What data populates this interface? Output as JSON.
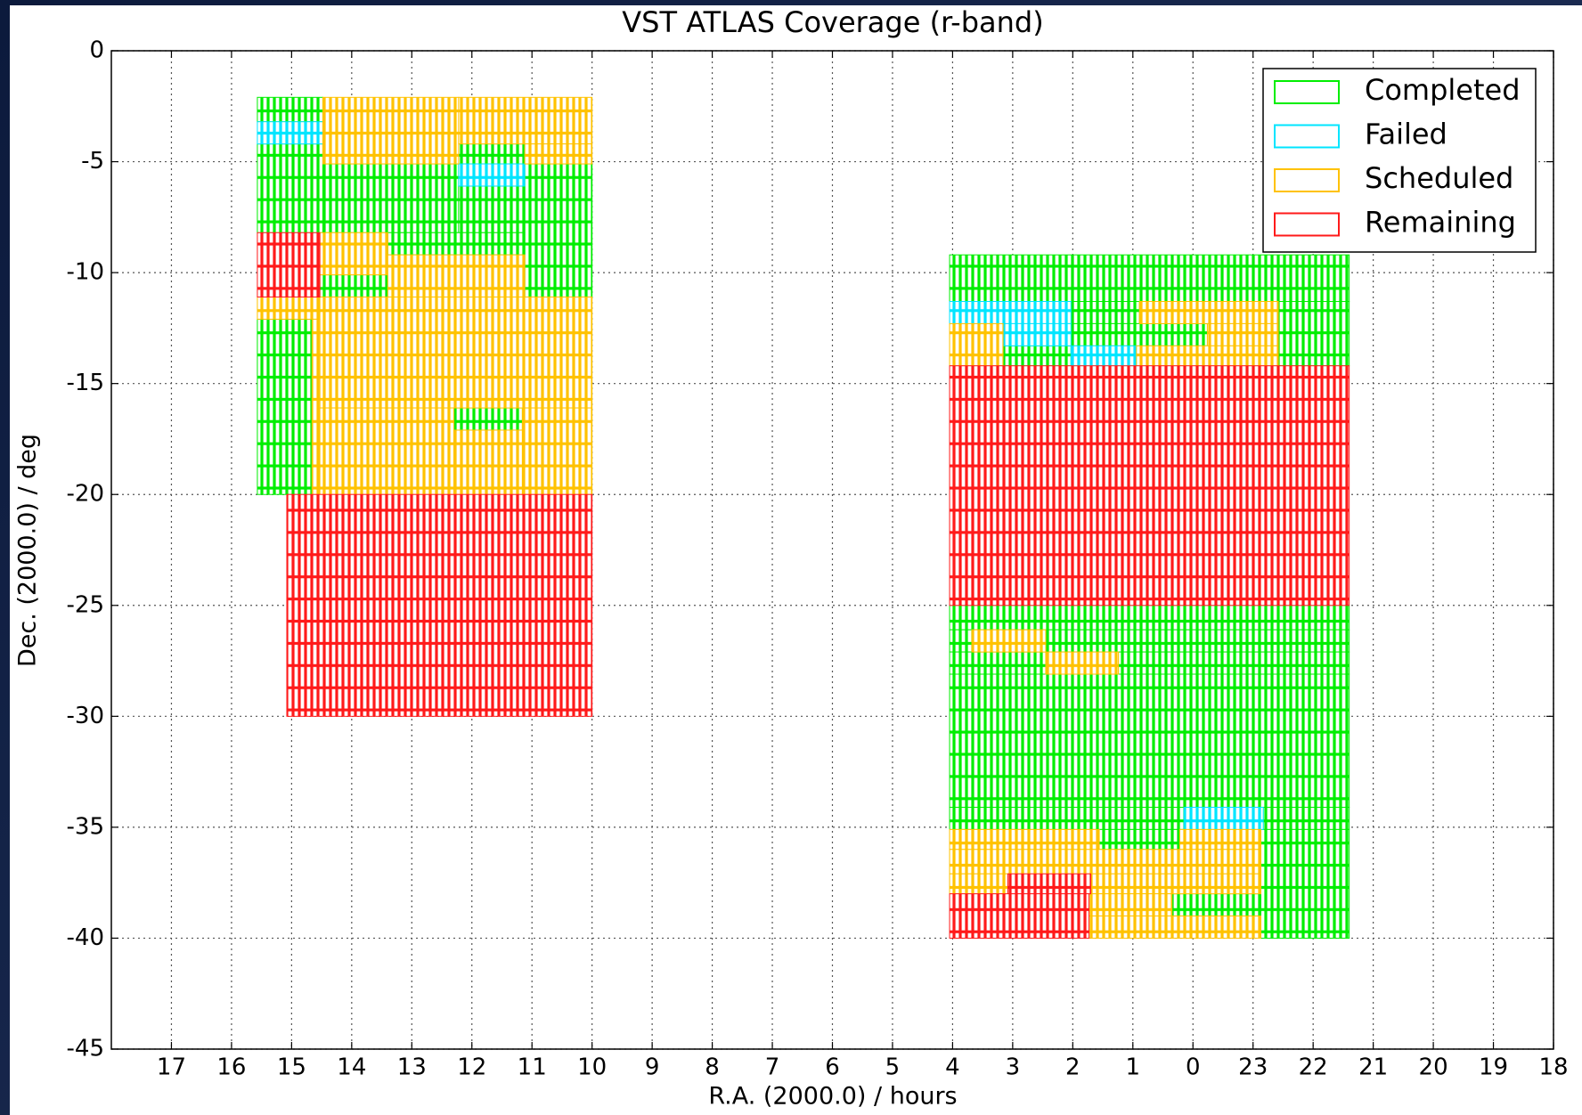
{
  "chart_data": {
    "type": "coverage",
    "title": "VST ATLAS Coverage (r-band)",
    "x_label": "R.A. (2000.0) / hours",
    "y_label": "Dec. (2000.0) / deg",
    "xlim": [
      18,
      -6
    ],
    "xticks": [
      17,
      16,
      15,
      14,
      13,
      12,
      11,
      10,
      9,
      8,
      7,
      6,
      5,
      4,
      3,
      2,
      1,
      0,
      {
        "value": -1,
        "label": "23"
      },
      {
        "value": -2,
        "label": "22"
      },
      {
        "value": -3,
        "label": "21"
      },
      {
        "value": -4,
        "label": "20"
      },
      {
        "value": -5,
        "label": "19"
      },
      {
        "value": -6,
        "label": "18"
      }
    ],
    "ylim": [
      0,
      -45
    ],
    "yticks": [
      0,
      -5,
      -10,
      -15,
      -20,
      -25,
      -30,
      -35,
      -40,
      -45
    ],
    "grid": true,
    "legend": "upper right",
    "series": [
      {
        "name": "Completed",
        "color": "#00ee00",
        "regions": [
          {
            "ra": [
              15.57,
              14.48
            ],
            "dec": [
              -2.1,
              -3.2
            ]
          },
          {
            "ra": [
              15.57,
              14.48
            ],
            "dec": [
              -4.2,
              -8.2
            ]
          },
          {
            "ra": [
              14.48,
              12.22
            ],
            "dec": [
              -5.1,
              -8.2
            ]
          },
          {
            "ra": [
              12.22,
              11.12
            ],
            "dec": [
              -4.2,
              -5.1
            ]
          },
          {
            "ra": [
              11.12,
              10
            ],
            "dec": [
              -5.1,
              -11.1
            ]
          },
          {
            "ra": [
              12.22,
              11.12
            ],
            "dec": [
              -6.1,
              -8.2
            ]
          },
          {
            "ra": [
              13.4,
              11.12
            ],
            "dec": [
              -8.2,
              -9.2
            ]
          },
          {
            "ra": [
              14.53,
              13.4
            ],
            "dec": [
              -10.1,
              -11.1
            ]
          },
          {
            "ra": [
              15.57,
              14.66
            ],
            "dec": [
              -12.1,
              -20
            ]
          },
          {
            "ra": [
              12.3,
              11.16
            ],
            "dec": [
              -16.1,
              -17.1
            ]
          },
          {
            "ra": [
              4.05,
              -2.6
            ],
            "dec": [
              -9.2,
              -11.3
            ]
          },
          {
            "ra": [
              2.03,
              0.89
            ],
            "dec": [
              -11.3,
              -12.3
            ]
          },
          {
            "ra": [
              -1.42,
              -2.6
            ],
            "dec": [
              -11.3,
              -14.2
            ]
          },
          {
            "ra": [
              3.16,
              2.03
            ],
            "dec": [
              -13.3,
              -14.2
            ]
          },
          {
            "ra": [
              2.03,
              -0.24
            ],
            "dec": [
              -12.3,
              -13.3
            ]
          },
          {
            "ra": [
              4.05,
              -2.6
            ],
            "dec": [
              -25,
              -26.1
            ]
          },
          {
            "ra": [
              4.05,
              3.68
            ],
            "dec": [
              -26.1,
              -27.1
            ]
          },
          {
            "ra": [
              2.45,
              -2.6
            ],
            "dec": [
              -26.1,
              -27.1
            ]
          },
          {
            "ra": [
              4.05,
              2.45
            ],
            "dec": [
              -27.1,
              -28.1
            ]
          },
          {
            "ra": [
              1.24,
              -2.6
            ],
            "dec": [
              -27.1,
              -28.1
            ]
          },
          {
            "ra": [
              4.05,
              -2.6
            ],
            "dec": [
              -28.1,
              -34.1
            ]
          },
          {
            "ra": [
              4.05,
              0.15
            ],
            "dec": [
              -34.1,
              -35.1
            ]
          },
          {
            "ra": [
              -1.17,
              -2.6
            ],
            "dec": [
              -34.1,
              -35.1
            ]
          },
          {
            "ra": [
              1.56,
              0.22
            ],
            "dec": [
              -35.1,
              -36
            ]
          },
          {
            "ra": [
              -1.13,
              -2.6
            ],
            "dec": [
              -35.1,
              -40
            ]
          },
          {
            "ra": [
              0.35,
              -1.13
            ],
            "dec": [
              -38,
              -39
            ]
          }
        ]
      },
      {
        "name": "Failed",
        "color": "#00e5ff",
        "regions": [
          {
            "ra": [
              15.57,
              14.48
            ],
            "dec": [
              -3.2,
              -4.2
            ]
          },
          {
            "ra": [
              12.22,
              11.12
            ],
            "dec": [
              -5.1,
              -6.1
            ]
          },
          {
            "ra": [
              4.05,
              2.03
            ],
            "dec": [
              -11.3,
              -12.3
            ]
          },
          {
            "ra": [
              3.16,
              2.03
            ],
            "dec": [
              -12.3,
              -13.3
            ]
          },
          {
            "ra": [
              2.03,
              0.94
            ],
            "dec": [
              -13.3,
              -14.2
            ]
          },
          {
            "ra": [
              0.15,
              -1.17
            ],
            "dec": [
              -34.1,
              -35.1
            ]
          }
        ]
      },
      {
        "name": "Scheduled",
        "color": "#ffc200",
        "regions": [
          {
            "ra": [
              14.48,
              12.22
            ],
            "dec": [
              -2.1,
              -5.1
            ]
          },
          {
            "ra": [
              12.22,
              10
            ],
            "dec": [
              -2.1,
              -4.2
            ]
          },
          {
            "ra": [
              11.12,
              10
            ],
            "dec": [
              -4.2,
              -5.1
            ]
          },
          {
            "ra": [
              14.53,
              13.4
            ],
            "dec": [
              -8.2,
              -10.1
            ]
          },
          {
            "ra": [
              13.4,
              11.12
            ],
            "dec": [
              -9.2,
              -11.1
            ]
          },
          {
            "ra": [
              15.57,
              14.53
            ],
            "dec": [
              -11.1,
              -12.1
            ]
          },
          {
            "ra": [
              14.53,
              10
            ],
            "dec": [
              -11.1,
              -16.1
            ]
          },
          {
            "ra": [
              14.66,
              14.53
            ],
            "dec": [
              -12.1,
              -20
            ]
          },
          {
            "ra": [
              14.53,
              12.3
            ],
            "dec": [
              -16.1,
              -20
            ]
          },
          {
            "ra": [
              12.3,
              11.16
            ],
            "dec": [
              -17.1,
              -20
            ]
          },
          {
            "ra": [
              11.16,
              10
            ],
            "dec": [
              -16.1,
              -20
            ]
          },
          {
            "ra": [
              0.89,
              -1.42
            ],
            "dec": [
              -11.3,
              -12.3
            ]
          },
          {
            "ra": [
              4.05,
              3.16
            ],
            "dec": [
              -12.3,
              -14.2
            ]
          },
          {
            "ra": [
              -0.24,
              -1.42
            ],
            "dec": [
              -12.3,
              -13.3
            ]
          },
          {
            "ra": [
              0.94,
              -1.42
            ],
            "dec": [
              -13.3,
              -14.2
            ]
          },
          {
            "ra": [
              3.68,
              2.45
            ],
            "dec": [
              -26.1,
              -27.1
            ]
          },
          {
            "ra": [
              2.45,
              1.24
            ],
            "dec": [
              -27.1,
              -28.1
            ]
          },
          {
            "ra": [
              4.05,
              1.56
            ],
            "dec": [
              -35.1,
              -36
            ]
          },
          {
            "ra": [
              0.22,
              -1.13
            ],
            "dec": [
              -35.1,
              -36
            ]
          },
          {
            "ra": [
              4.05,
              -1.13
            ],
            "dec": [
              -36,
              -37.1
            ]
          },
          {
            "ra": [
              4.05,
              3.08
            ],
            "dec": [
              -37.1,
              -38
            ]
          },
          {
            "ra": [
              1.7,
              -1.13
            ],
            "dec": [
              -37.1,
              -38
            ]
          },
          {
            "ra": [
              1.73,
              0.35
            ],
            "dec": [
              -38,
              -39
            ]
          },
          {
            "ra": [
              1.73,
              -1.13
            ],
            "dec": [
              -39,
              -40
            ]
          }
        ]
      },
      {
        "name": "Remaining",
        "color": "#ff1a1a",
        "regions": [
          {
            "ra": [
              15.57,
              14.53
            ],
            "dec": [
              -8.2,
              -11.1
            ]
          },
          {
            "ra": [
              15.08,
              10
            ],
            "dec": [
              -20,
              -30
            ]
          },
          {
            "ra": [
              4.05,
              -2.6
            ],
            "dec": [
              -14.2,
              -25
            ]
          },
          {
            "ra": [
              3.08,
              1.7
            ],
            "dec": [
              -37.1,
              -38
            ]
          },
          {
            "ra": [
              4.05,
              1.73
            ],
            "dec": [
              -38,
              -40
            ]
          }
        ]
      }
    ]
  }
}
